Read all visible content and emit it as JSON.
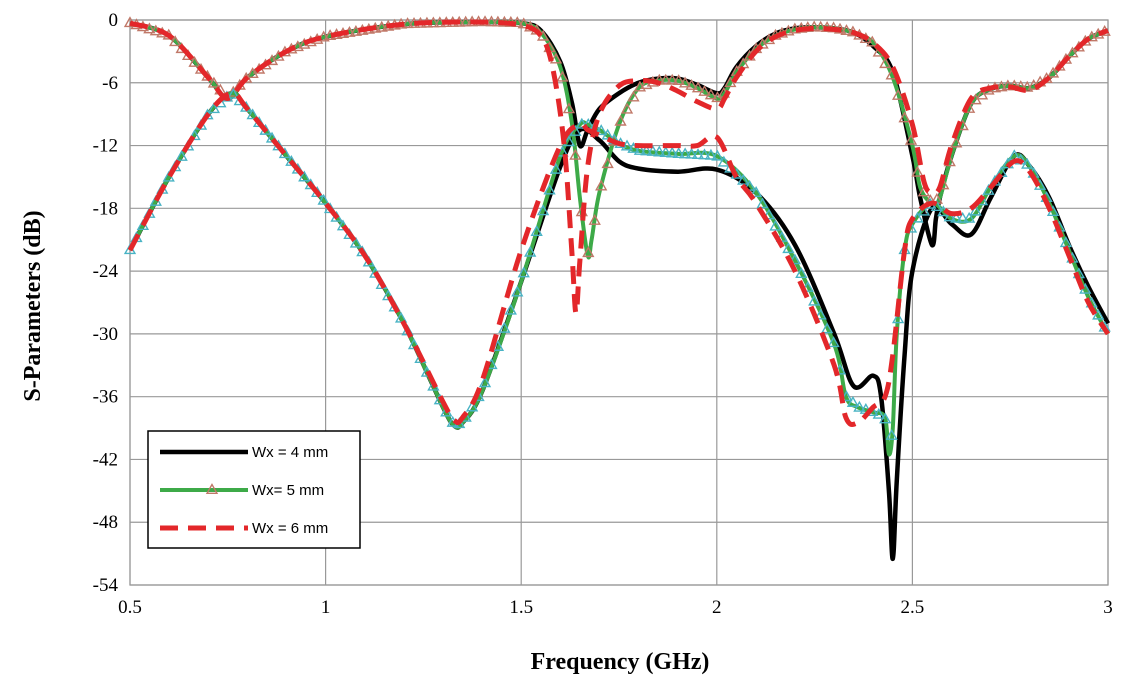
{
  "chart_data": {
    "type": "line",
    "title": "",
    "xlabel": "Frequency (GHz)",
    "ylabel": "S-Parameters (dB)",
    "xlim": [
      0.5,
      3
    ],
    "ylim": [
      -54,
      0
    ],
    "xticks": [
      0.5,
      1,
      1.5,
      2,
      2.5,
      3
    ],
    "xtick_labels": [
      "0.5",
      "1",
      "1.5",
      "2",
      "2.5",
      "3"
    ],
    "yticks": [
      0,
      -6,
      -12,
      -18,
      -24,
      -30,
      -36,
      -42,
      -48,
      -54
    ],
    "ytick_labels": [
      "0",
      "-6",
      "-12",
      "-18",
      "-24",
      "-30",
      "-36",
      "-42",
      "-48",
      "-54"
    ],
    "grid": true,
    "legend_position": "bottom-left",
    "series": [
      {
        "name": "Wx = 4 mm",
        "color": "#000000",
        "style": "solid",
        "curves": [
          {
            "x": [
              0.5,
              0.6,
              0.7,
              0.75,
              0.8,
              0.9,
              1.0,
              1.2,
              1.4,
              1.5,
              1.55,
              1.6,
              1.63,
              1.65,
              1.67,
              1.7,
              1.75,
              1.8,
              1.85,
              1.9,
              1.95,
              2.0,
              2.02,
              2.05,
              2.1,
              2.15,
              2.2,
              2.25,
              2.3,
              2.35,
              2.4,
              2.45,
              2.5,
              2.52,
              2.55,
              2.56,
              2.57,
              2.6,
              2.65,
              2.7,
              2.75,
              2.8,
              2.85,
              2.9,
              2.95,
              3.0
            ],
            "y": [
              -0.3,
              -1.5,
              -5.5,
              -7.5,
              -5.5,
              -3.0,
              -1.6,
              -0.4,
              -0.2,
              -0.3,
              -1.0,
              -4.0,
              -8.0,
              -12.0,
              -10.5,
              -8.5,
              -7.0,
              -6.0,
              -5.6,
              -5.6,
              -6.2,
              -7.0,
              -6.5,
              -4.5,
              -2.5,
              -1.3,
              -0.8,
              -0.7,
              -0.8,
              -1.2,
              -2.5,
              -5.0,
              -13.0,
              -17.0,
              -21.5,
              -19.0,
              -17.0,
              -13.0,
              -8.0,
              -6.6,
              -6.3,
              -6.5,
              -5.5,
              -3.5,
              -1.8,
              -1.0
            ]
          },
          {
            "x": [
              0.5,
              0.6,
              0.7,
              0.76,
              0.8,
              0.9,
              1.0,
              1.1,
              1.2,
              1.3,
              1.33,
              1.35,
              1.4,
              1.5,
              1.6,
              1.65,
              1.7,
              1.75,
              1.8,
              1.9,
              2.0,
              2.1,
              2.2,
              2.3,
              2.35,
              2.4,
              2.42,
              2.44,
              2.45,
              2.46,
              2.48,
              2.5,
              2.55,
              2.6,
              2.65,
              2.7,
              2.76,
              2.8,
              2.85,
              2.9,
              2.95,
              3.0
            ],
            "y": [
              -22.0,
              -15.0,
              -9.0,
              -7.0,
              -8.5,
              -13.0,
              -17.5,
              -22.5,
              -29.0,
              -37.0,
              -38.8,
              -38.5,
              -35.5,
              -25.0,
              -14.0,
              -10.5,
              -11.5,
              -13.5,
              -14.2,
              -14.5,
              -14.3,
              -16.5,
              -21.5,
              -30.0,
              -35.0,
              -34.0,
              -36.0,
              -45.0,
              -51.5,
              -44.0,
              -32.0,
              -24.0,
              -18.0,
              -19.5,
              -20.5,
              -17.0,
              -13.0,
              -14.0,
              -17.0,
              -21.5,
              -25.5,
              -29.0
            ]
          }
        ]
      },
      {
        "name": "Wx= 5 mm",
        "color": "#3daa48",
        "marker_color": "#c07868",
        "style": "triangle-markers",
        "curves": [
          {
            "x": [
              0.5,
              0.6,
              0.7,
              0.75,
              0.8,
              0.9,
              1.0,
              1.2,
              1.4,
              1.5,
              1.55,
              1.6,
              1.63,
              1.65,
              1.67,
              1.68,
              1.7,
              1.75,
              1.8,
              1.85,
              1.9,
              1.95,
              2.0,
              2.02,
              2.05,
              2.1,
              2.15,
              2.2,
              2.25,
              2.3,
              2.35,
              2.4,
              2.45,
              2.5,
              2.52,
              2.55,
              2.57,
              2.6,
              2.65,
              2.7,
              2.75,
              2.8,
              2.85,
              2.9,
              2.95,
              3.0
            ],
            "y": [
              -0.3,
              -1.5,
              -5.5,
              -7.5,
              -5.5,
              -3.0,
              -1.6,
              -0.4,
              -0.2,
              -0.3,
              -1.2,
              -4.5,
              -10.0,
              -17.0,
              -22.5,
              -21.0,
              -16.5,
              -10.0,
              -6.5,
              -5.8,
              -5.8,
              -6.5,
              -7.5,
              -7.0,
              -5.0,
              -2.8,
              -1.5,
              -0.9,
              -0.7,
              -0.8,
              -1.2,
              -2.2,
              -5.5,
              -12.0,
              -16.0,
              -17.5,
              -17.0,
              -13.0,
              -8.0,
              -6.6,
              -6.3,
              -6.5,
              -5.5,
              -3.5,
              -1.8,
              -1.0
            ]
          },
          {
            "x": [
              0.5,
              0.6,
              0.7,
              0.76,
              0.8,
              0.9,
              1.0,
              1.1,
              1.2,
              1.3,
              1.33,
              1.35,
              1.4,
              1.5,
              1.6,
              1.65,
              1.67,
              1.7,
              1.75,
              1.8,
              1.9,
              2.0,
              2.1,
              2.2,
              2.3,
              2.33,
              2.36,
              2.4,
              2.43,
              2.44,
              2.45,
              2.46,
              2.48,
              2.5,
              2.55,
              2.6,
              2.65,
              2.7,
              2.76,
              2.8,
              2.85,
              2.9,
              2.95,
              3.0
            ],
            "y": [
              -22.0,
              -15.0,
              -9.0,
              -7.0,
              -8.5,
              -13.0,
              -17.5,
              -22.5,
              -29.0,
              -37.0,
              -38.8,
              -38.5,
              -35.5,
              -25.0,
              -13.0,
              -10.0,
              -10.0,
              -10.5,
              -11.8,
              -12.5,
              -12.8,
              -13.0,
              -16.5,
              -23.0,
              -31.0,
              -36.0,
              -37.0,
              -37.5,
              -38.0,
              -41.5,
              -39.0,
              -30.0,
              -22.0,
              -19.5,
              -17.5,
              -19.0,
              -19.0,
              -16.0,
              -13.0,
              -14.0,
              -17.5,
              -22.0,
              -26.5,
              -30.0
            ]
          }
        ]
      },
      {
        "name": "Wx = 6 mm",
        "color": "#e3272a",
        "style": "dashed",
        "curves": [
          {
            "x": [
              0.5,
              0.6,
              0.7,
              0.75,
              0.8,
              0.9,
              1.0,
              1.2,
              1.4,
              1.5,
              1.55,
              1.58,
              1.61,
              1.63,
              1.64,
              1.65,
              1.67,
              1.7,
              1.75,
              1.8,
              1.85,
              1.9,
              1.95,
              2.0,
              2.02,
              2.05,
              2.1,
              2.15,
              2.2,
              2.25,
              2.3,
              2.35,
              2.4,
              2.45,
              2.5,
              2.53,
              2.55,
              2.57,
              2.6,
              2.65,
              2.7,
              2.75,
              2.8,
              2.85,
              2.9,
              2.95,
              3.0
            ],
            "y": [
              -0.3,
              -1.5,
              -5.5,
              -7.5,
              -5.5,
              -3.0,
              -1.6,
              -0.4,
              -0.2,
              -0.5,
              -1.5,
              -4.5,
              -12.0,
              -22.5,
              -28.0,
              -23.0,
              -14.0,
              -9.0,
              -6.3,
              -5.8,
              -6.0,
              -6.8,
              -7.8,
              -8.5,
              -7.5,
              -5.5,
              -3.0,
              -1.6,
              -1.0,
              -0.8,
              -0.9,
              -1.2,
              -2.2,
              -4.5,
              -10.0,
              -15.5,
              -16.5,
              -16.0,
              -12.0,
              -7.5,
              -6.5,
              -6.4,
              -6.7,
              -5.5,
              -3.5,
              -1.8,
              -1.0
            ]
          },
          {
            "x": [
              0.5,
              0.6,
              0.7,
              0.76,
              0.8,
              0.9,
              1.0,
              1.1,
              1.2,
              1.3,
              1.33,
              1.35,
              1.4,
              1.5,
              1.6,
              1.65,
              1.67,
              1.7,
              1.75,
              1.8,
              1.9,
              1.95,
              2.0,
              2.05,
              2.1,
              2.2,
              2.3,
              2.33,
              2.36,
              2.4,
              2.43,
              2.45,
              2.48,
              2.5,
              2.55,
              2.6,
              2.65,
              2.7,
              2.76,
              2.8,
              2.85,
              2.9,
              2.95,
              3.0
            ],
            "y": [
              -22.0,
              -15.0,
              -9.0,
              -7.0,
              -8.5,
              -13.0,
              -17.5,
              -22.5,
              -29.0,
              -36.5,
              -38.3,
              -38.0,
              -34.5,
              -22.0,
              -12.0,
              -10.0,
              -10.5,
              -11.0,
              -11.8,
              -12.0,
              -12.0,
              -12.0,
              -11.2,
              -15.0,
              -17.5,
              -24.0,
              -33.0,
              -38.0,
              -38.5,
              -37.0,
              -36.0,
              -32.0,
              -22.0,
              -19.0,
              -17.5,
              -18.5,
              -18.0,
              -16.0,
              -13.5,
              -14.5,
              -18.0,
              -22.5,
              -27.0,
              -30.0
            ]
          }
        ]
      }
    ]
  }
}
